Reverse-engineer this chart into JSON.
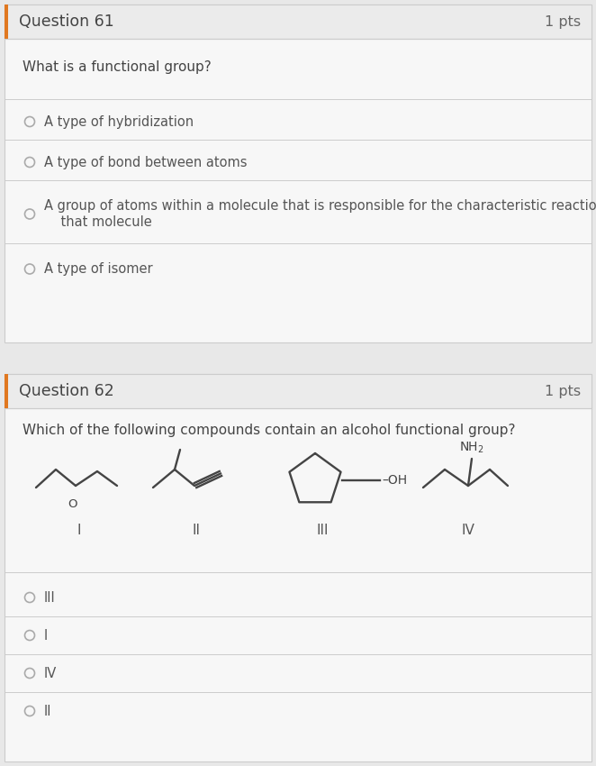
{
  "bg_color": "#e8e8e8",
  "card_bg": "#f7f7f7",
  "border_color": "#cccccc",
  "text_color": "#444444",
  "label_color": "#555555",
  "pts_color": "#666666",
  "q1_header": "Question 61",
  "q1_pts": "1 pts",
  "q1_question": "What is a functional group?",
  "q1_choices": [
    "A type of hybridization",
    "A type of bond between atoms",
    "A group of atoms within a molecule that is responsible for the characteristic reactions of\n    that molecule",
    "A type of isomer"
  ],
  "q2_header": "Question 62",
  "q2_pts": "1 pts",
  "q2_question": "Which of the following compounds contain an alcohol functional group?",
  "q2_choices": [
    "III",
    "I",
    "IV",
    "II"
  ],
  "mol_labels": [
    "I",
    "II",
    "III",
    "IV"
  ],
  "accent_color": "#e07820",
  "circle_color": "#aaaaaa",
  "mol_color": "#444444",
  "oh_color": "#444444"
}
